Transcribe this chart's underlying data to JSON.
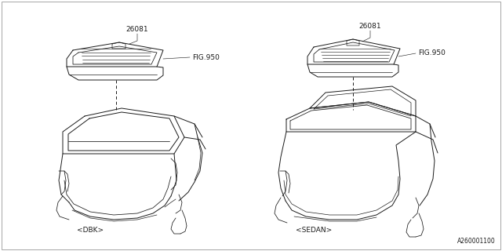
{
  "background_color": "#ffffff",
  "line_color": "#1a1a1a",
  "text_color": "#1a1a1a",
  "font_size_label": 6.5,
  "font_size_code": 5.5,
  "title_bottom_right": "A260001100",
  "left_label": "<DBK>",
  "right_label": "<SEDAN>",
  "part_number": "26081",
  "fig_ref": "FIG.950"
}
